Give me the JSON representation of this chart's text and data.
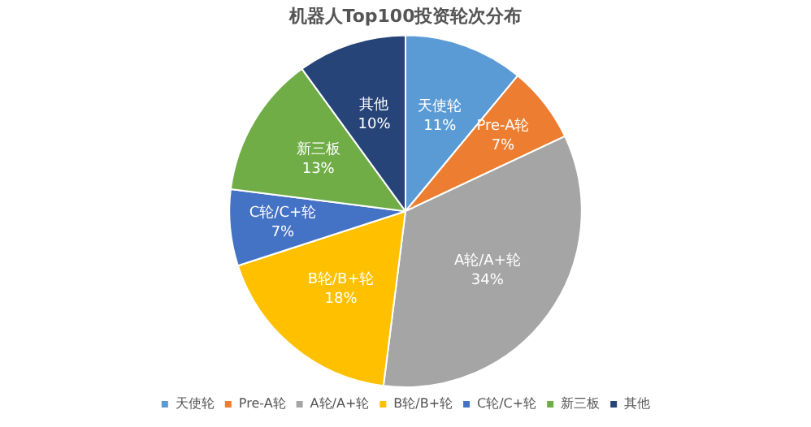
{
  "chart_data": {
    "type": "pie",
    "title": "机器人Top100投资轮次分布",
    "categories": [
      "天使轮",
      "Pre-A轮",
      "A轮/A+轮",
      "B轮/B+轮",
      "C轮/C+轮",
      "新三板",
      "其他"
    ],
    "values": [
      11,
      7,
      34,
      18,
      7,
      13,
      10
    ],
    "value_labels": [
      "11%",
      "7%",
      "34%",
      "18%",
      "7%",
      "13%",
      "10%"
    ],
    "colors": [
      "#5b9bd5",
      "#ed7d31",
      "#a5a5a5",
      "#ffc000",
      "#4472c4",
      "#70ad47",
      "#264478"
    ],
    "legend": "bottom"
  }
}
